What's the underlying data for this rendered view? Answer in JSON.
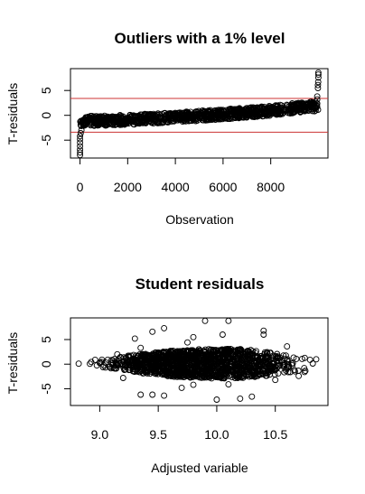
{
  "chart_data": [
    {
      "type": "scatter",
      "title": "Outliers with a 1% level",
      "xlabel": "Observation",
      "ylabel": "T-residuals",
      "xlim": [
        -400,
        10400
      ],
      "ylim": [
        -8.6,
        9.4
      ],
      "xticks": [
        0,
        2000,
        4000,
        6000,
        8000
      ],
      "xtick_labels": [
        "0",
        "2000",
        "4000",
        "6000",
        "8000"
      ],
      "yticks": [
        -5,
        0,
        5
      ],
      "ytick_labels": [
        "-5",
        "0",
        "5"
      ],
      "grid": false,
      "legend": "none",
      "band_center": [
        {
          "x": 0,
          "y": -1.2
        },
        {
          "x": 2000,
          "y": -0.9
        },
        {
          "x": 4000,
          "y": -0.4
        },
        {
          "x": 6000,
          "y": 0.2
        },
        {
          "x": 8000,
          "y": 0.9
        },
        {
          "x": 9600,
          "y": 1.8
        }
      ],
      "band_halfwidth": 1.0,
      "points": [
        {
          "x": 0,
          "y": -8.0
        },
        {
          "x": 0,
          "y": -7.5
        },
        {
          "x": 0,
          "y": -6.9
        },
        {
          "x": 0,
          "y": -6.2
        },
        {
          "x": 0,
          "y": -5.5
        },
        {
          "x": 0,
          "y": -4.8
        },
        {
          "x": 0,
          "y": -4.2
        },
        {
          "x": 30,
          "y": -3.6
        },
        {
          "x": 60,
          "y": -3.0
        },
        {
          "x": 9950,
          "y": 3.2
        },
        {
          "x": 9950,
          "y": 3.8
        },
        {
          "x": 9980,
          "y": 5.5
        },
        {
          "x": 9980,
          "y": 6.1
        },
        {
          "x": 9990,
          "y": 6.7
        },
        {
          "x": 10000,
          "y": 7.6
        },
        {
          "x": 10000,
          "y": 8.2
        },
        {
          "x": 10000,
          "y": 8.6
        }
      ],
      "reference_lines": [
        {
          "y": 3.4,
          "color": "#cc3333"
        },
        {
          "y": -3.4,
          "color": "#cc3333"
        }
      ]
    },
    {
      "type": "scatter",
      "title": "Student residuals",
      "xlabel": "Adjusted variable",
      "ylabel": "T-residuals",
      "xlim": [
        8.75,
        10.95
      ],
      "ylim": [
        -8.4,
        9.4
      ],
      "xticks": [
        9.0,
        9.5,
        10.0,
        10.5
      ],
      "xtick_labels": [
        "9.0",
        "9.5",
        "10.0",
        "10.5"
      ],
      "yticks": [
        -5,
        0,
        5
      ],
      "ytick_labels": [
        "-5",
        "0",
        "5"
      ],
      "grid": false,
      "legend": "none",
      "cloud": [
        {
          "x": 8.8,
          "half": 0.6
        },
        {
          "x": 9.0,
          "half": 0.9
        },
        {
          "x": 9.3,
          "half": 1.8
        },
        {
          "x": 9.6,
          "half": 2.6
        },
        {
          "x": 9.9,
          "half": 3.0
        },
        {
          "x": 10.2,
          "half": 3.0
        },
        {
          "x": 10.5,
          "half": 2.3
        },
        {
          "x": 10.75,
          "half": 1.5
        },
        {
          "x": 10.9,
          "half": 0.7
        }
      ],
      "cloud_center": 0.1,
      "points": [
        {
          "x": 9.9,
          "y": 8.8
        },
        {
          "x": 10.1,
          "y": 8.8
        },
        {
          "x": 9.55,
          "y": 7.3
        },
        {
          "x": 9.45,
          "y": 6.6
        },
        {
          "x": 9.3,
          "y": 5.2
        },
        {
          "x": 9.8,
          "y": 5.5
        },
        {
          "x": 10.4,
          "y": 6.8
        },
        {
          "x": 10.4,
          "y": 6.0
        },
        {
          "x": 10.05,
          "y": 6.0
        },
        {
          "x": 9.75,
          "y": 4.4
        },
        {
          "x": 9.35,
          "y": 3.3
        },
        {
          "x": 10.6,
          "y": 3.6
        },
        {
          "x": 9.15,
          "y": 2.0
        },
        {
          "x": 8.82,
          "y": 0.1
        },
        {
          "x": 9.0,
          "y": 0.3
        },
        {
          "x": 10.85,
          "y": 1.0
        },
        {
          "x": 10.75,
          "y": -1.6
        },
        {
          "x": 9.35,
          "y": -6.2
        },
        {
          "x": 9.45,
          "y": -6.2
        },
        {
          "x": 9.55,
          "y": -6.4
        },
        {
          "x": 9.7,
          "y": -4.8
        },
        {
          "x": 9.8,
          "y": -4.2
        },
        {
          "x": 10.0,
          "y": -7.2
        },
        {
          "x": 10.2,
          "y": -7.0
        },
        {
          "x": 10.3,
          "y": -6.6
        },
        {
          "x": 10.1,
          "y": -4.1
        },
        {
          "x": 10.5,
          "y": -3.2
        },
        {
          "x": 9.2,
          "y": -2.8
        },
        {
          "x": 10.7,
          "y": -2.4
        }
      ]
    }
  ]
}
